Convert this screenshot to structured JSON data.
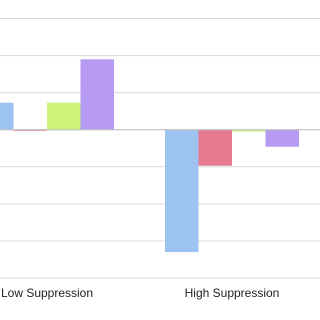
{
  "chart_data": {
    "type": "bar",
    "categories": [
      "Low Suppression",
      "High Suppression"
    ],
    "series": [
      {
        "color": "#9dc3f0",
        "values": [
          0.73,
          -3.3
        ]
      },
      {
        "color": "#e57a8f",
        "values": [
          -0.03,
          -0.97
        ]
      },
      {
        "color": "#cdf27a",
        "values": [
          0.73,
          -0.05
        ]
      },
      {
        "color": "#b79af2",
        "values": [
          1.9,
          -0.46
        ]
      }
    ],
    "ylim": [
      -4,
      3.5
    ],
    "yticks": [
      -4,
      -3,
      -2,
      -1,
      0,
      1,
      2,
      3
    ],
    "grid": true
  }
}
